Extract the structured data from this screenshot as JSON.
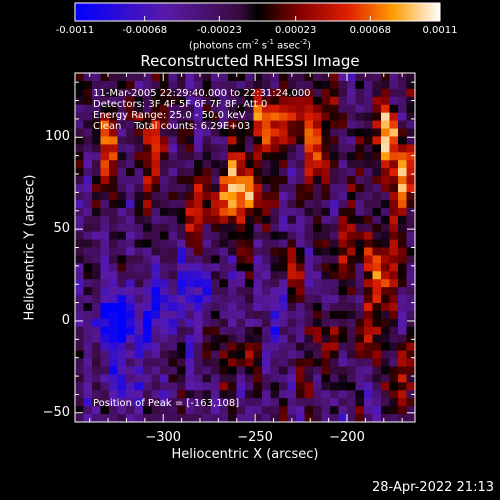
{
  "colorbar": {
    "ticks": [
      {
        "value": -0.0011,
        "label": "-0.0011"
      },
      {
        "value": -0.00068,
        "label": "-0.00068"
      },
      {
        "value": -0.00023,
        "label": "-0.00023"
      },
      {
        "value": 0.00023,
        "label": "0.00023"
      },
      {
        "value": 0.00068,
        "label": "0.00068"
      },
      {
        "value": 0.0011,
        "label": "0.0011"
      }
    ],
    "range": [
      -0.0011,
      0.0011
    ],
    "units_prefix": "(photons cm",
    "units_exp1": "-2",
    "units_mid": " s",
    "units_exp2": "-1",
    "units_mid2": " asec",
    "units_exp3": "-2",
    "units_suffix": ")"
  },
  "chart_data": {
    "type": "heatmap",
    "title": "Reconstructed RHESSI Image",
    "xlabel": "Heliocentric X (arcsec)",
    "ylabel": "Heliocentric Y (arcsec)",
    "xlim": [
      -348,
      -163
    ],
    "ylim": [
      -55,
      135
    ],
    "xticks": [
      {
        "value": -300,
        "label": "−300"
      },
      {
        "value": -250,
        "label": "−250"
      },
      {
        "value": -200,
        "label": "−200"
      }
    ],
    "yticks": [
      {
        "value": -50,
        "label": "−50"
      },
      {
        "value": 0,
        "label": "0"
      },
      {
        "value": 50,
        "label": "50"
      },
      {
        "value": 100,
        "label": "100"
      }
    ],
    "peak": [
      -163,
      108
    ],
    "value_range": [
      -0.0011,
      0.0011
    ],
    "grid": false
  },
  "annotations": {
    "time": "11-Mar-2005 22:29:40.000 to 22:31:24.000",
    "detectors": "Detectors: 3F 4F 5F 6F 7F 8F, Att 0",
    "energy": "Energy Range: 25.0 - 50.0 keV",
    "clean": "Clean    Total counts: 6.29E+03",
    "peak_label": "Position of Peak = [-163,108]"
  },
  "footer": {
    "timestamp": "28-Apr-2022 21:13"
  }
}
